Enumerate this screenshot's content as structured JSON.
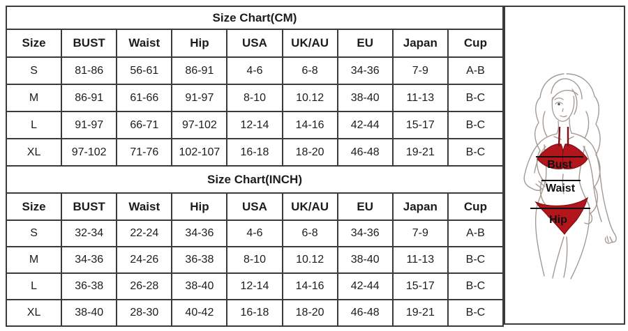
{
  "page": {
    "background": "#ffffff",
    "border_color": "#3a3a3a",
    "text_color": "#1c1c1c"
  },
  "tables": [
    {
      "title": "Size Chart(CM)",
      "columns": [
        "Size",
        "BUST",
        "Waist",
        "Hip",
        "USA",
        "UK/AU",
        "EU",
        "Japan",
        "Cup"
      ],
      "rows": [
        [
          "S",
          "81-86",
          "56-61",
          "86-91",
          "4-6",
          "6-8",
          "34-36",
          "7-9",
          "A-B"
        ],
        [
          "M",
          "86-91",
          "61-66",
          "91-97",
          "8-10",
          "10.12",
          "38-40",
          "11-13",
          "B-C"
        ],
        [
          "L",
          "91-97",
          "66-71",
          "97-102",
          "12-14",
          "14-16",
          "42-44",
          "15-17",
          "B-C"
        ],
        [
          "XL",
          "97-102",
          "71-76",
          "102-107",
          "16-18",
          "18-20",
          "46-48",
          "19-21",
          "B-C"
        ]
      ]
    },
    {
      "title": "Size Chart(INCH)",
      "columns": [
        "Size",
        "BUST",
        "Waist",
        "Hip",
        "USA",
        "UK/AU",
        "EU",
        "Japan",
        "Cup"
      ],
      "rows": [
        [
          "S",
          "32-34",
          "22-24",
          "34-36",
          "4-6",
          "6-8",
          "34-36",
          "7-9",
          "A-B"
        ],
        [
          "M",
          "34-36",
          "24-26",
          "36-38",
          "8-10",
          "10.12",
          "38-40",
          "11-13",
          "B-C"
        ],
        [
          "L",
          "36-38",
          "26-28",
          "38-40",
          "12-14",
          "14-16",
          "42-44",
          "15-17",
          "B-C"
        ],
        [
          "XL",
          "38-40",
          "28-30",
          "40-42",
          "16-18",
          "18-20",
          "46-48",
          "19-21",
          "B-C"
        ]
      ]
    }
  ],
  "figure": {
    "labels": {
      "bust": "Bust",
      "waist": "Waist",
      "hip": "Hip"
    },
    "bikini_color": "#b2151b",
    "bikini_outline": "#7e0f14",
    "measure_line_color": "#111111",
    "label_color": "#111111",
    "sketch_color": "#a39a91"
  }
}
